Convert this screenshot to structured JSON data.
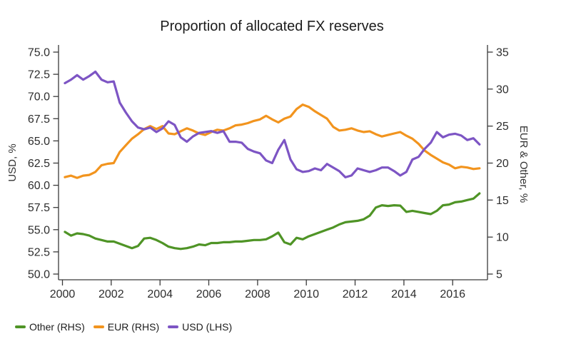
{
  "title": "Proportion of allocated FX reserves",
  "legend": [
    {
      "id": "other",
      "label": "Other (RHS)",
      "color": "#4f9426"
    },
    {
      "id": "eur",
      "label": "EUR (RHS)",
      "color": "#f2941e"
    },
    {
      "id": "usd",
      "label": "USD (LHS)",
      "color": "#7d55c4"
    }
  ],
  "chart_data": {
    "type": "line",
    "title": "Proportion of allocated FX reserves",
    "grid": false,
    "legend_position": "bottom-left",
    "x_start": 2000.1,
    "x_step": 0.25,
    "x_axis": {
      "ticks": [
        2000,
        2002,
        2004,
        2006,
        2008,
        2010,
        2012,
        2014,
        2016
      ],
      "tick_labels": [
        "2000",
        "2002",
        "2004",
        "2006",
        "2008",
        "2010",
        "2012",
        "2014",
        "2016"
      ],
      "range": [
        1999.85,
        2017.45
      ]
    },
    "left_axis": {
      "label": "USD, %",
      "ticks": [
        50.0,
        52.5,
        55.0,
        57.5,
        60.0,
        62.5,
        65.0,
        67.5,
        70.0,
        72.5,
        75.0
      ],
      "tick_labels": [
        "50.0",
        "52.5",
        "55.0",
        "57.5",
        "60.0",
        "62.5",
        "65.0",
        "67.5",
        "70.0",
        "72.5",
        "75.0"
      ],
      "range": [
        50,
        75
      ]
    },
    "right_axis": {
      "label": "EUR & Other, %",
      "ticks": [
        5,
        10,
        15,
        20,
        25,
        30,
        35
      ],
      "tick_labels": [
        "5",
        "10",
        "15",
        "20",
        "25",
        "30",
        "35"
      ],
      "range": [
        5,
        35
      ]
    },
    "series": [
      {
        "id": "other",
        "name": "Other (RHS)",
        "axis": "right",
        "color": "#4f9426",
        "values": [
          10.7,
          10.2,
          10.5,
          10.4,
          10.2,
          9.8,
          9.6,
          9.4,
          9.4,
          9.1,
          8.8,
          8.5,
          8.8,
          9.8,
          9.9,
          9.6,
          9.2,
          8.7,
          8.5,
          8.4,
          8.5,
          8.7,
          9.0,
          8.9,
          9.2,
          9.2,
          9.3,
          9.3,
          9.4,
          9.4,
          9.5,
          9.6,
          9.6,
          9.7,
          10.1,
          10.6,
          9.3,
          9.0,
          9.9,
          9.7,
          10.1,
          10.4,
          10.7,
          11.0,
          11.3,
          11.7,
          12.0,
          12.1,
          12.2,
          12.4,
          12.9,
          14.0,
          14.3,
          14.2,
          14.3,
          14.25,
          13.4,
          13.55,
          13.4,
          13.25,
          13.1,
          13.55,
          14.3,
          14.4,
          14.7,
          14.8,
          15.0,
          15.2,
          15.9
        ]
      },
      {
        "id": "eur",
        "name": "EUR (RHS)",
        "axis": "right",
        "color": "#f2941e",
        "values": [
          18.1,
          18.3,
          18.0,
          18.3,
          18.4,
          18.8,
          19.7,
          19.9,
          20.0,
          21.5,
          22.4,
          23.3,
          23.9,
          24.6,
          25.0,
          24.6,
          25.0,
          24.0,
          23.9,
          24.3,
          24.7,
          24.4,
          24.0,
          23.8,
          24.2,
          24.5,
          24.4,
          24.7,
          25.1,
          25.2,
          25.4,
          25.7,
          25.9,
          26.4,
          25.9,
          25.5,
          26.0,
          26.3,
          27.3,
          27.9,
          27.6,
          27.0,
          26.5,
          26.0,
          24.9,
          24.4,
          24.5,
          24.7,
          24.4,
          24.2,
          24.3,
          23.9,
          23.6,
          23.8,
          24.0,
          24.2,
          23.7,
          23.3,
          22.6,
          21.7,
          21.1,
          20.6,
          20.1,
          19.8,
          19.3,
          19.5,
          19.4,
          19.2,
          19.3
        ]
      },
      {
        "id": "usd",
        "name": "USD (LHS)",
        "axis": "left",
        "color": "#7d55c4",
        "values": [
          71.5,
          71.9,
          72.4,
          71.9,
          72.3,
          72.8,
          71.9,
          71.6,
          71.7,
          69.3,
          68.2,
          67.2,
          66.5,
          66.3,
          66.5,
          66.0,
          66.4,
          67.2,
          66.8,
          65.4,
          64.9,
          65.5,
          65.9,
          66.0,
          66.1,
          65.9,
          66.1,
          64.9,
          64.9,
          64.8,
          64.1,
          63.8,
          63.6,
          62.8,
          62.5,
          64.0,
          65.1,
          62.9,
          61.8,
          61.5,
          61.6,
          61.9,
          61.7,
          62.4,
          62.0,
          61.6,
          60.9,
          61.1,
          61.9,
          61.7,
          61.5,
          61.7,
          62.0,
          62.0,
          61.6,
          61.1,
          61.5,
          62.9,
          63.2,
          64.1,
          64.8,
          66.0,
          65.4,
          65.7,
          65.8,
          65.6,
          65.1,
          65.3,
          64.6
        ]
      }
    ]
  }
}
